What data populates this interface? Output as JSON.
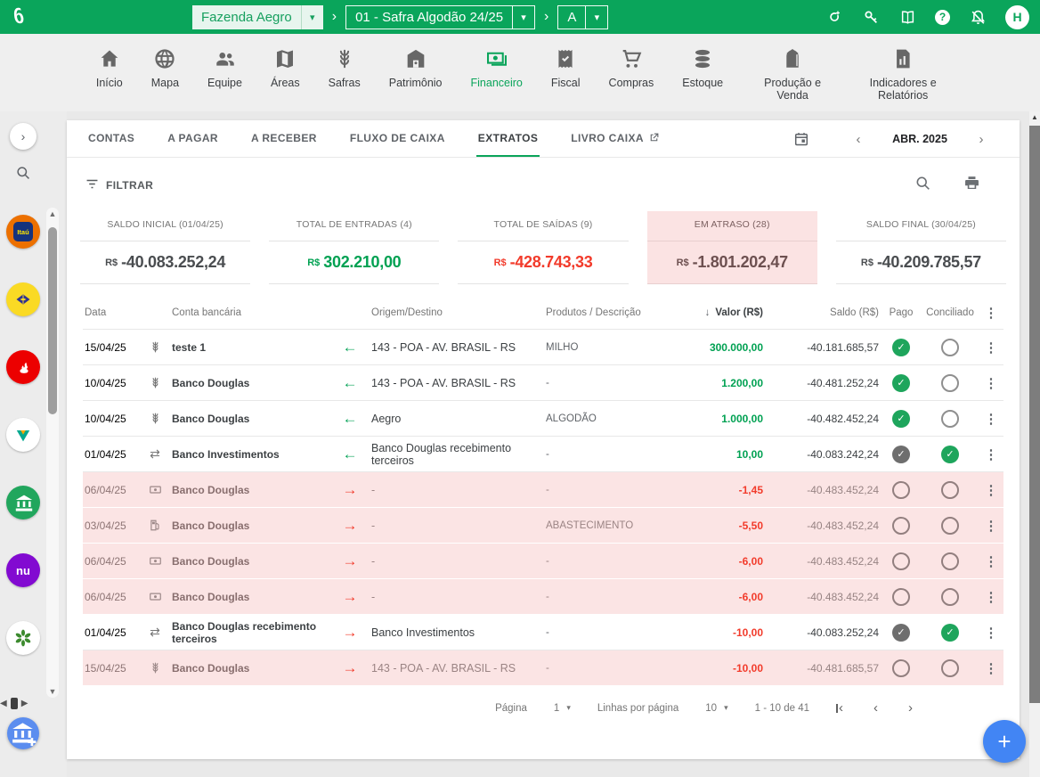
{
  "header": {
    "farm_selector": "Fazenda Aegro",
    "season_selector": "01 - Safra Algodão 24/25",
    "field_selector": "A",
    "avatar_initial": "H",
    "icons": [
      "invite-icon",
      "tools-icon",
      "guide-book-icon",
      "help-icon",
      "notifications-off-icon"
    ]
  },
  "nav": {
    "items": [
      {
        "label": "Início",
        "icon": "home"
      },
      {
        "label": "Mapa",
        "icon": "globe"
      },
      {
        "label": "Equipe",
        "icon": "people"
      },
      {
        "label": "Áreas",
        "icon": "map"
      },
      {
        "label": "Safras",
        "icon": "wheat"
      },
      {
        "label": "Patrimônio",
        "icon": "barn"
      },
      {
        "label": "Financeiro",
        "icon": "money",
        "active": true
      },
      {
        "label": "Fiscal",
        "icon": "receipt"
      },
      {
        "label": "Compras",
        "icon": "cart"
      },
      {
        "label": "Estoque",
        "icon": "layers"
      },
      {
        "label": "Produção e Venda",
        "icon": "silo"
      },
      {
        "label": "Indicadores e Relatórios",
        "icon": "report"
      }
    ]
  },
  "sidebar": {
    "banks": [
      {
        "name": "itau",
        "bg": "#ec7000"
      },
      {
        "name": "banco-do-brasil",
        "bg": "#fada24"
      },
      {
        "name": "santander",
        "bg": "#ec0000"
      },
      {
        "name": "viacredi",
        "bg": "#ffffff"
      },
      {
        "name": "banco-generico",
        "bg": "#21a65d"
      },
      {
        "name": "nubank",
        "bg": "#820ad1",
        "text": "nu"
      },
      {
        "name": "sicredi",
        "bg": "#ffffff"
      }
    ]
  },
  "tabs": [
    {
      "label": "CONTAS"
    },
    {
      "label": "A PAGAR"
    },
    {
      "label": "A RECEBER"
    },
    {
      "label": "FLUXO DE CAIXA"
    },
    {
      "label": "EXTRATOS",
      "active": true
    },
    {
      "label": "LIVRO CAIXA",
      "external": true
    }
  ],
  "period": {
    "label": "ABR. 2025"
  },
  "toolbar": {
    "filter_label": "FILTRAR"
  },
  "summary_cards": [
    {
      "label": "SALDO INICIAL (01/04/25)",
      "currency": "R$",
      "value": "-40.083.252,24",
      "tone": "neutral",
      "highlight": false
    },
    {
      "label": "TOTAL DE ENTRADAS (4)",
      "currency": "R$",
      "value": "302.210,00",
      "tone": "green",
      "highlight": false
    },
    {
      "label": "TOTAL DE SAÍDAS (9)",
      "currency": "R$",
      "value": "-428.743,33",
      "tone": "red",
      "highlight": false
    },
    {
      "label": "EM ATRASO (28)",
      "currency": "R$",
      "value": "-1.801.202,47",
      "tone": "overdue",
      "highlight": true
    },
    {
      "label": "SALDO FINAL (30/04/25)",
      "currency": "R$",
      "value": "-40.209.785,57",
      "tone": "neutral",
      "highlight": false
    }
  ],
  "table": {
    "columns": {
      "date": "Data",
      "account": "Conta bancária",
      "origin": "Origem/Destino",
      "products": "Produtos / Descrição",
      "value": "Valor (R$)",
      "balance": "Saldo (R$)",
      "paid": "Pago",
      "reconciled": "Conciliado"
    },
    "rows": [
      {
        "date": "15/04/25",
        "type_icon": "wheat-icon",
        "account": "teste 1",
        "direction": "in",
        "origin": "143 - POA - AV. BRASIL - RS",
        "product": "MILHO",
        "value": "300.000,00",
        "value_tone": "green",
        "balance": "-40.181.685,57",
        "paid": "check-green",
        "reconciled": "empty",
        "pink": false
      },
      {
        "date": "10/04/25",
        "type_icon": "wheat-icon",
        "account": "Banco Douglas",
        "direction": "in",
        "origin": "143 - POA - AV. BRASIL - RS",
        "product": "-",
        "value": "1.200,00",
        "value_tone": "green",
        "balance": "-40.481.252,24",
        "paid": "check-green",
        "reconciled": "empty",
        "pink": false
      },
      {
        "date": "10/04/25",
        "type_icon": "wheat-icon",
        "account": "Banco Douglas",
        "direction": "in",
        "origin": "Aegro",
        "product": "ALGODÃO",
        "value": "1.000,00",
        "value_tone": "green",
        "balance": "-40.482.452,24",
        "paid": "check-green",
        "reconciled": "empty",
        "pink": false
      },
      {
        "date": "01/04/25",
        "type_icon": "transfer-icon",
        "account": "Banco Investimentos",
        "direction": "in",
        "origin": "Banco Douglas recebimento terceiros",
        "product": "-",
        "value": "10,00",
        "value_tone": "green",
        "balance": "-40.083.242,24",
        "paid": "check-gray",
        "reconciled": "check-green",
        "pink": false
      },
      {
        "date": "06/04/25",
        "type_icon": "banknote-icon",
        "account": "Banco Douglas",
        "direction": "out",
        "origin": "-",
        "product": "-",
        "value": "-1,45",
        "value_tone": "red",
        "balance": "-40.483.452,24",
        "paid": "empty",
        "reconciled": "empty",
        "pink": true
      },
      {
        "date": "03/04/25",
        "type_icon": "fuel-icon",
        "account": "Banco Douglas",
        "direction": "out",
        "origin": "-",
        "product": "ABASTECIMENTO",
        "value": "-5,50",
        "value_tone": "red",
        "balance": "-40.483.452,24",
        "paid": "empty",
        "reconciled": "empty",
        "pink": true
      },
      {
        "date": "06/04/25",
        "type_icon": "banknote-icon",
        "account": "Banco Douglas",
        "direction": "out",
        "origin": "-",
        "product": "-",
        "value": "-6,00",
        "value_tone": "red",
        "balance": "-40.483.452,24",
        "paid": "empty",
        "reconciled": "empty",
        "pink": true
      },
      {
        "date": "06/04/25",
        "type_icon": "banknote-icon",
        "account": "Banco Douglas",
        "direction": "out",
        "origin": "-",
        "product": "-",
        "value": "-6,00",
        "value_tone": "red",
        "balance": "-40.483.452,24",
        "paid": "empty",
        "reconciled": "empty",
        "pink": true
      },
      {
        "date": "01/04/25",
        "type_icon": "transfer-icon",
        "account": "Banco Douglas recebimento terceiros",
        "direction": "out",
        "origin": "Banco Investimentos",
        "product": "-",
        "value": "-10,00",
        "value_tone": "red",
        "balance": "-40.083.252,24",
        "paid": "check-gray",
        "reconciled": "check-green",
        "pink": false
      },
      {
        "date": "15/04/25",
        "type_icon": "wheat-icon",
        "account": "Banco Douglas",
        "direction": "out",
        "origin": "143 - POA - AV. BRASIL - RS",
        "product": "-",
        "value": "-10,00",
        "value_tone": "red",
        "balance": "-40.481.685,57",
        "paid": "empty",
        "reconciled": "empty",
        "pink": true
      }
    ]
  },
  "pagination": {
    "page_label": "Página",
    "page_value": "1",
    "rows_label": "Linhas por página",
    "rows_value": "10",
    "range": "1 - 10 de 41"
  },
  "colors": {
    "header_green": "#0aa55b",
    "accent_green": "#0aa45a",
    "value_green": "#00a152",
    "value_red": "#f23b2b",
    "overdue_pink_bg": "#fbe3e3",
    "row_pink_bg": "#fbe4e4",
    "fab_blue": "#4285f4",
    "add_bank_blue": "#5b8def"
  }
}
